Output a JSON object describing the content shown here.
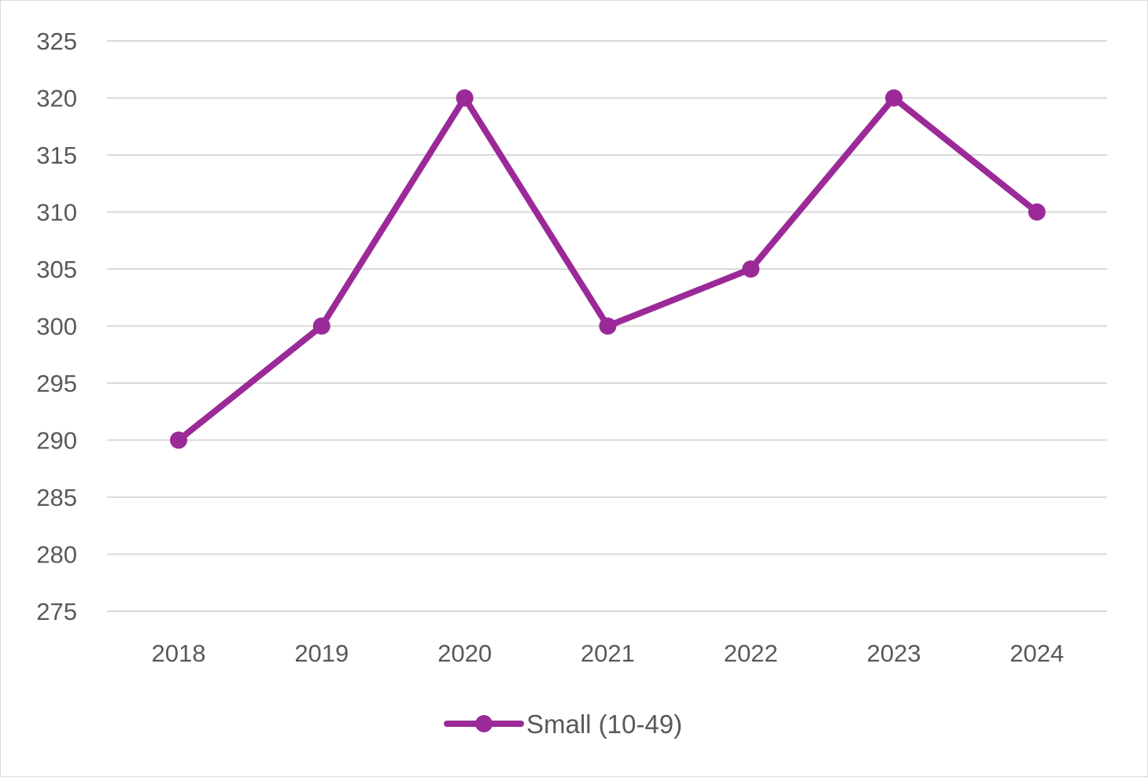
{
  "chart_data": {
    "type": "line",
    "title": "",
    "xlabel": "",
    "ylabel": "",
    "categories": [
      "2018",
      "2019",
      "2020",
      "2021",
      "2022",
      "2023",
      "2024"
    ],
    "series": [
      {
        "name": "Small (10-49)",
        "values": [
          290,
          300,
          320,
          300,
          305,
          320,
          310
        ],
        "color": "#9b2a98",
        "marker": "circle"
      }
    ],
    "ylim": [
      275,
      325
    ],
    "yticks": [
      325,
      320,
      315,
      310,
      305,
      300,
      295,
      290,
      285,
      280,
      275
    ],
    "grid": true,
    "legend": "bottom"
  }
}
